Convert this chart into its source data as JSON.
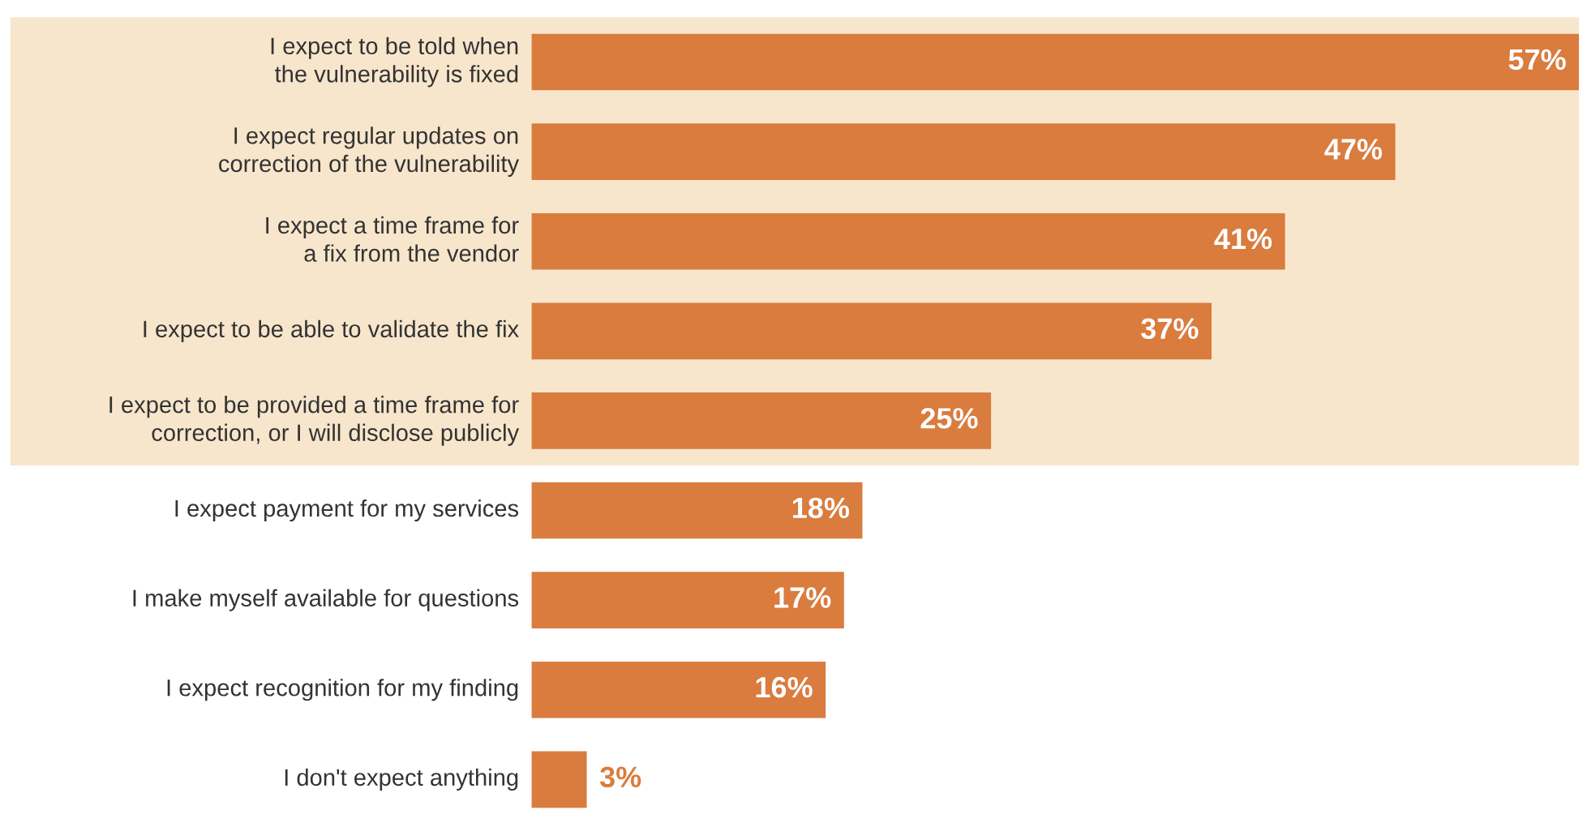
{
  "chart_data": {
    "type": "bar",
    "orientation": "horizontal",
    "categories": [
      "I expect to be told when\nthe vulnerability is fixed",
      "I expect regular updates on\ncorrection of the vulnerability",
      "I expect a time frame for\na fix from the vendor",
      "I expect to be able to validate the fix",
      "I expect to be provided a time frame for\ncorrection, or I will disclose publicly",
      "I expect payment for my services",
      "I make myself available for questions",
      "I expect recognition for my finding",
      "I don't expect anything"
    ],
    "values": [
      57,
      47,
      41,
      37,
      25,
      18,
      17,
      16,
      3
    ],
    "value_labels": [
      "57%",
      "47%",
      "41%",
      "37%",
      "25%",
      "18%",
      "17%",
      "16%",
      "3%"
    ],
    "color": "#d97c3e",
    "bands": [
      {
        "axis": "y",
        "from": "I expect to be told when\nthe vulnerability is fixed",
        "to": "I expect to be provided a time frame for\ncorrection, or I will disclose publicly",
        "color": "#f8e6cc"
      }
    ]
  }
}
